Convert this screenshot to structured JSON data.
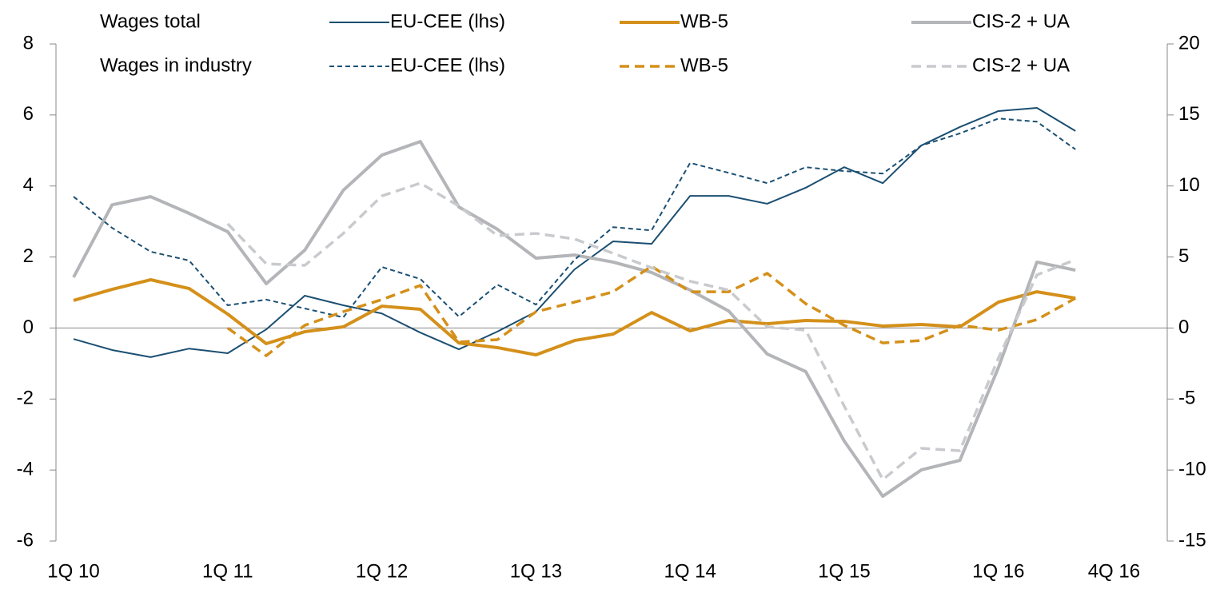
{
  "chart_data": {
    "type": "line",
    "categories": [
      "1Q 10",
      null,
      null,
      null,
      "1Q 11",
      null,
      null,
      null,
      "1Q 12",
      null,
      null,
      null,
      "1Q 13",
      null,
      null,
      null,
      "1Q 14",
      null,
      null,
      null,
      "1Q 15",
      null,
      null,
      null,
      "1Q 16",
      null,
      null,
      "4Q 16"
    ],
    "legend_groups": [
      "Wages total",
      "Wages in industry"
    ],
    "ylim": [
      -6,
      8
    ],
    "yticks": [
      -6,
      -4,
      -2,
      0,
      2,
      4,
      6,
      8
    ],
    "y2lim": [
      -15,
      20
    ],
    "y2ticks": [
      -15,
      -10,
      -5,
      0,
      5,
      10,
      15,
      20
    ],
    "series": [
      {
        "name": "EU-CEE (lhs)",
        "color": "#1b4f72",
        "style": "solid",
        "width": 2,
        "values": [
          -0.31,
          -0.62,
          -0.82,
          -0.58,
          -0.71,
          -0.04,
          0.91,
          0.64,
          0.41,
          -0.13,
          -0.6,
          -0.1,
          0.46,
          1.65,
          2.44,
          2.37,
          3.72,
          3.72,
          3.5,
          3.95,
          4.53,
          4.08,
          5.14,
          5.66,
          6.11,
          6.2,
          5.55,
          null
        ]
      },
      {
        "name": "WB-5",
        "color": "#d4901a",
        "style": "solid",
        "width": 4,
        "axis": "y2",
        "values": [
          1.94,
          2.72,
          3.4,
          2.78,
          0.98,
          -1.1,
          -0.26,
          0.08,
          1.54,
          1.32,
          -1.05,
          -1.38,
          -1.89,
          -0.88,
          -0.43,
          1.09,
          -0.2,
          0.53,
          0.3,
          0.53,
          0.47,
          0.14,
          0.25,
          0.08,
          1.82,
          2.55,
          2.1,
          null
        ]
      },
      {
        "name": "CIS-2 + UA",
        "color": "#b4b5b8",
        "style": "solid",
        "width": 4,
        "axis": "y2",
        "values": [
          3.57,
          8.67,
          9.25,
          8.07,
          6.78,
          3.12,
          5.48,
          9.7,
          12.17,
          13.13,
          8.52,
          6.95,
          4.92,
          5.14,
          4.64,
          3.91,
          2.67,
          1.2,
          -1.83,
          -3.07,
          -7.96,
          -11.85,
          -9.99,
          -9.32,
          -2.79,
          4.64,
          4.07,
          null
        ]
      },
      {
        "name": "EU-CEE (lhs)",
        "color": "#1b4f72",
        "style": "dashed",
        "width": 2,
        "values": [
          3.7,
          2.82,
          2.15,
          1.9,
          0.64,
          0.8,
          0.55,
          0.3,
          1.72,
          1.38,
          0.32,
          1.22,
          0.66,
          1.92,
          2.84,
          2.75,
          4.65,
          4.37,
          4.08,
          4.53,
          4.42,
          4.35,
          5.14,
          5.48,
          5.9,
          5.81,
          5.03,
          null
        ]
      },
      {
        "name": "WB-5",
        "color": "#d4901a",
        "style": "dashed",
        "width": 3.5,
        "axis": "y2",
        "values": [
          null,
          null,
          null,
          null,
          0,
          -1.95,
          0.19,
          1.15,
          2.0,
          3.0,
          -0.99,
          -0.82,
          1.15,
          1.82,
          2.55,
          4.35,
          2.55,
          2.55,
          3.85,
          1.71,
          0.19,
          -1.05,
          -0.88,
          0.19,
          -0.15,
          0.59,
          2.1,
          null
        ]
      },
      {
        "name": "CIS-2 + UA",
        "color": "#c9cacd",
        "style": "dashed",
        "width": 3.5,
        "axis": "y2",
        "values": [
          null,
          null,
          null,
          null,
          7.34,
          4.52,
          4.41,
          6.66,
          9.3,
          10.2,
          8.58,
          6.5,
          6.66,
          6.27,
          5.26,
          4.24,
          3.29,
          2.67,
          0.08,
          -0.15,
          -5.5,
          -10.67,
          -8.47,
          -8.64,
          -2.12,
          3.74,
          4.81,
          null
        ]
      }
    ]
  }
}
